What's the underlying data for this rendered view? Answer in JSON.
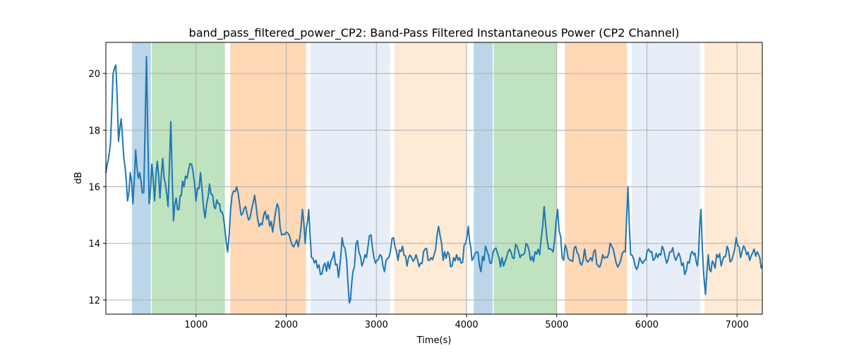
{
  "chart_data": {
    "type": "line",
    "title": "band_pass_filtered_power_CP2: Band-Pass Filtered Instantaneous Power (CP2 Channel)",
    "xlabel": "Time(s)",
    "ylabel": "dB",
    "xlim": [
      0,
      7280
    ],
    "ylim": [
      11.5,
      21.1
    ],
    "grid": true,
    "x_ticks": [
      1000,
      2000,
      3000,
      4000,
      5000,
      6000,
      7000
    ],
    "y_ticks": [
      12,
      14,
      16,
      18,
      20
    ],
    "line_color": "#1f77b4",
    "bands": [
      {
        "start": 290,
        "end": 500,
        "color": "#1f77b4",
        "opacity": 0.3
      },
      {
        "start": 510,
        "end": 1320,
        "color": "#2ca02c",
        "opacity": 0.3
      },
      {
        "start": 1380,
        "end": 2220,
        "color": "#ff7f0e",
        "opacity": 0.3
      },
      {
        "start": 2270,
        "end": 3150,
        "color": "#aec7e8",
        "opacity": 0.3
      },
      {
        "start": 3200,
        "end": 4000,
        "color": "#ffbb78",
        "opacity": 0.3
      },
      {
        "start": 4080,
        "end": 4290,
        "color": "#1f77b4",
        "opacity": 0.3
      },
      {
        "start": 4300,
        "end": 5000,
        "color": "#2ca02c",
        "opacity": 0.3
      },
      {
        "start": 5090,
        "end": 5780,
        "color": "#ff7f0e",
        "opacity": 0.3
      },
      {
        "start": 5830,
        "end": 6590,
        "color": "#aec7e8",
        "opacity": 0.3
      },
      {
        "start": 6640,
        "end": 7280,
        "color": "#ffbb78",
        "opacity": 0.3
      }
    ],
    "anchors": [
      [
        0,
        16.5
      ],
      [
        30,
        17.0
      ],
      [
        50,
        17.5
      ],
      [
        80,
        20.0
      ],
      [
        110,
        20.3
      ],
      [
        140,
        17.6
      ],
      [
        170,
        18.4
      ],
      [
        200,
        17.0
      ],
      [
        240,
        15.5
      ],
      [
        270,
        16.5
      ],
      [
        300,
        15.4
      ],
      [
        330,
        17.3
      ],
      [
        360,
        16.3
      ],
      [
        390,
        16.2
      ],
      [
        420,
        15.8
      ],
      [
        450,
        20.6
      ],
      [
        480,
        15.4
      ],
      [
        510,
        16.8
      ],
      [
        540,
        15.5
      ],
      [
        570,
        16.9
      ],
      [
        600,
        15.6
      ],
      [
        630,
        17.0
      ],
      [
        660,
        16.1
      ],
      [
        690,
        15.3
      ],
      [
        720,
        18.3
      ],
      [
        750,
        14.8
      ],
      [
        780,
        15.6
      ],
      [
        810,
        15.2
      ],
      [
        850,
        16.2
      ],
      [
        900,
        16.3
      ],
      [
        950,
        16.8
      ],
      [
        1000,
        15.5
      ],
      [
        1050,
        16.5
      ],
      [
        1100,
        14.9
      ],
      [
        1150,
        16.1
      ],
      [
        1200,
        15.3
      ],
      [
        1260,
        15.4
      ],
      [
        1300,
        15.0
      ],
      [
        1350,
        13.7
      ],
      [
        1400,
        15.7
      ],
      [
        1450,
        16.0
      ],
      [
        1500,
        15.0
      ],
      [
        1550,
        15.3
      ],
      [
        1600,
        14.9
      ],
      [
        1650,
        15.7
      ],
      [
        1700,
        14.6
      ],
      [
        1750,
        15.0
      ],
      [
        1800,
        15.0
      ],
      [
        1850,
        14.4
      ],
      [
        1900,
        15.4
      ],
      [
        1950,
        14.3
      ],
      [
        2000,
        14.4
      ],
      [
        2050,
        14.1
      ],
      [
        2100,
        14.0
      ],
      [
        2150,
        14.2
      ],
      [
        2180,
        15.2
      ],
      [
        2210,
        14.0
      ],
      [
        2250,
        15.2
      ],
      [
        2280,
        13.5
      ],
      [
        2330,
        13.4
      ],
      [
        2380,
        12.9
      ],
      [
        2430,
        13.3
      ],
      [
        2480,
        13.1
      ],
      [
        2530,
        13.7
      ],
      [
        2580,
        12.8
      ],
      [
        2620,
        14.2
      ],
      [
        2670,
        13.4
      ],
      [
        2700,
        11.9
      ],
      [
        2740,
        13.0
      ],
      [
        2790,
        14.1
      ],
      [
        2840,
        13.2
      ],
      [
        2890,
        13.5
      ],
      [
        2940,
        14.3
      ],
      [
        2990,
        13.3
      ],
      [
        3040,
        13.6
      ],
      [
        3090,
        13.0
      ],
      [
        3140,
        13.5
      ],
      [
        3190,
        14.2
      ],
      [
        3240,
        13.4
      ],
      [
        3290,
        13.9
      ],
      [
        3340,
        13.2
      ],
      [
        3390,
        13.5
      ],
      [
        3440,
        13.6
      ],
      [
        3490,
        13.3
      ],
      [
        3540,
        13.8
      ],
      [
        3590,
        13.4
      ],
      [
        3640,
        13.6
      ],
      [
        3690,
        14.6
      ],
      [
        3740,
        13.4
      ],
      [
        3790,
        13.7
      ],
      [
        3840,
        13.2
      ],
      [
        3890,
        13.6
      ],
      [
        3940,
        13.3
      ],
      [
        3990,
        14.0
      ],
      [
        4020,
        14.6
      ],
      [
        4060,
        13.4
      ],
      [
        4110,
        13.7
      ],
      [
        4160,
        13.0
      ],
      [
        4210,
        13.9
      ],
      [
        4260,
        13.3
      ],
      [
        4310,
        13.8
      ],
      [
        4360,
        13.5
      ],
      [
        4410,
        13.2
      ],
      [
        4460,
        13.7
      ],
      [
        4510,
        13.5
      ],
      [
        4560,
        13.9
      ],
      [
        4610,
        13.6
      ],
      [
        4660,
        14.0
      ],
      [
        4710,
        13.4
      ],
      [
        4760,
        13.7
      ],
      [
        4810,
        13.6
      ],
      [
        4860,
        15.3
      ],
      [
        4910,
        13.8
      ],
      [
        4960,
        13.7
      ],
      [
        5010,
        15.2
      ],
      [
        5060,
        13.5
      ],
      [
        5110,
        13.8
      ],
      [
        5160,
        13.4
      ],
      [
        5210,
        13.9
      ],
      [
        5260,
        13.3
      ],
      [
        5310,
        13.8
      ],
      [
        5360,
        13.4
      ],
      [
        5410,
        13.7
      ],
      [
        5460,
        13.2
      ],
      [
        5510,
        13.6
      ],
      [
        5560,
        13.5
      ],
      [
        5610,
        13.9
      ],
      [
        5660,
        13.3
      ],
      [
        5710,
        13.4
      ],
      [
        5760,
        13.7
      ],
      [
        5790,
        16.0
      ],
      [
        5820,
        13.6
      ],
      [
        5870,
        13.2
      ],
      [
        5920,
        13.5
      ],
      [
        5970,
        13.4
      ],
      [
        6020,
        13.8
      ],
      [
        6070,
        13.4
      ],
      [
        6120,
        13.5
      ],
      [
        6170,
        13.9
      ],
      [
        6220,
        13.3
      ],
      [
        6270,
        13.7
      ],
      [
        6320,
        13.4
      ],
      [
        6370,
        13.5
      ],
      [
        6420,
        12.9
      ],
      [
        6470,
        13.3
      ],
      [
        6520,
        13.6
      ],
      [
        6560,
        13.2
      ],
      [
        6600,
        15.2
      ],
      [
        6630,
        12.9
      ],
      [
        6650,
        12.2
      ],
      [
        6680,
        13.6
      ],
      [
        6710,
        13.0
      ],
      [
        6740,
        13.3
      ],
      [
        6790,
        13.5
      ],
      [
        6840,
        13.4
      ],
      [
        6890,
        13.9
      ],
      [
        6940,
        13.4
      ],
      [
        6990,
        14.2
      ],
      [
        7040,
        13.5
      ],
      [
        7090,
        13.8
      ],
      [
        7140,
        13.4
      ],
      [
        7190,
        13.8
      ],
      [
        7240,
        13.6
      ],
      [
        7280,
        13.2
      ]
    ]
  }
}
